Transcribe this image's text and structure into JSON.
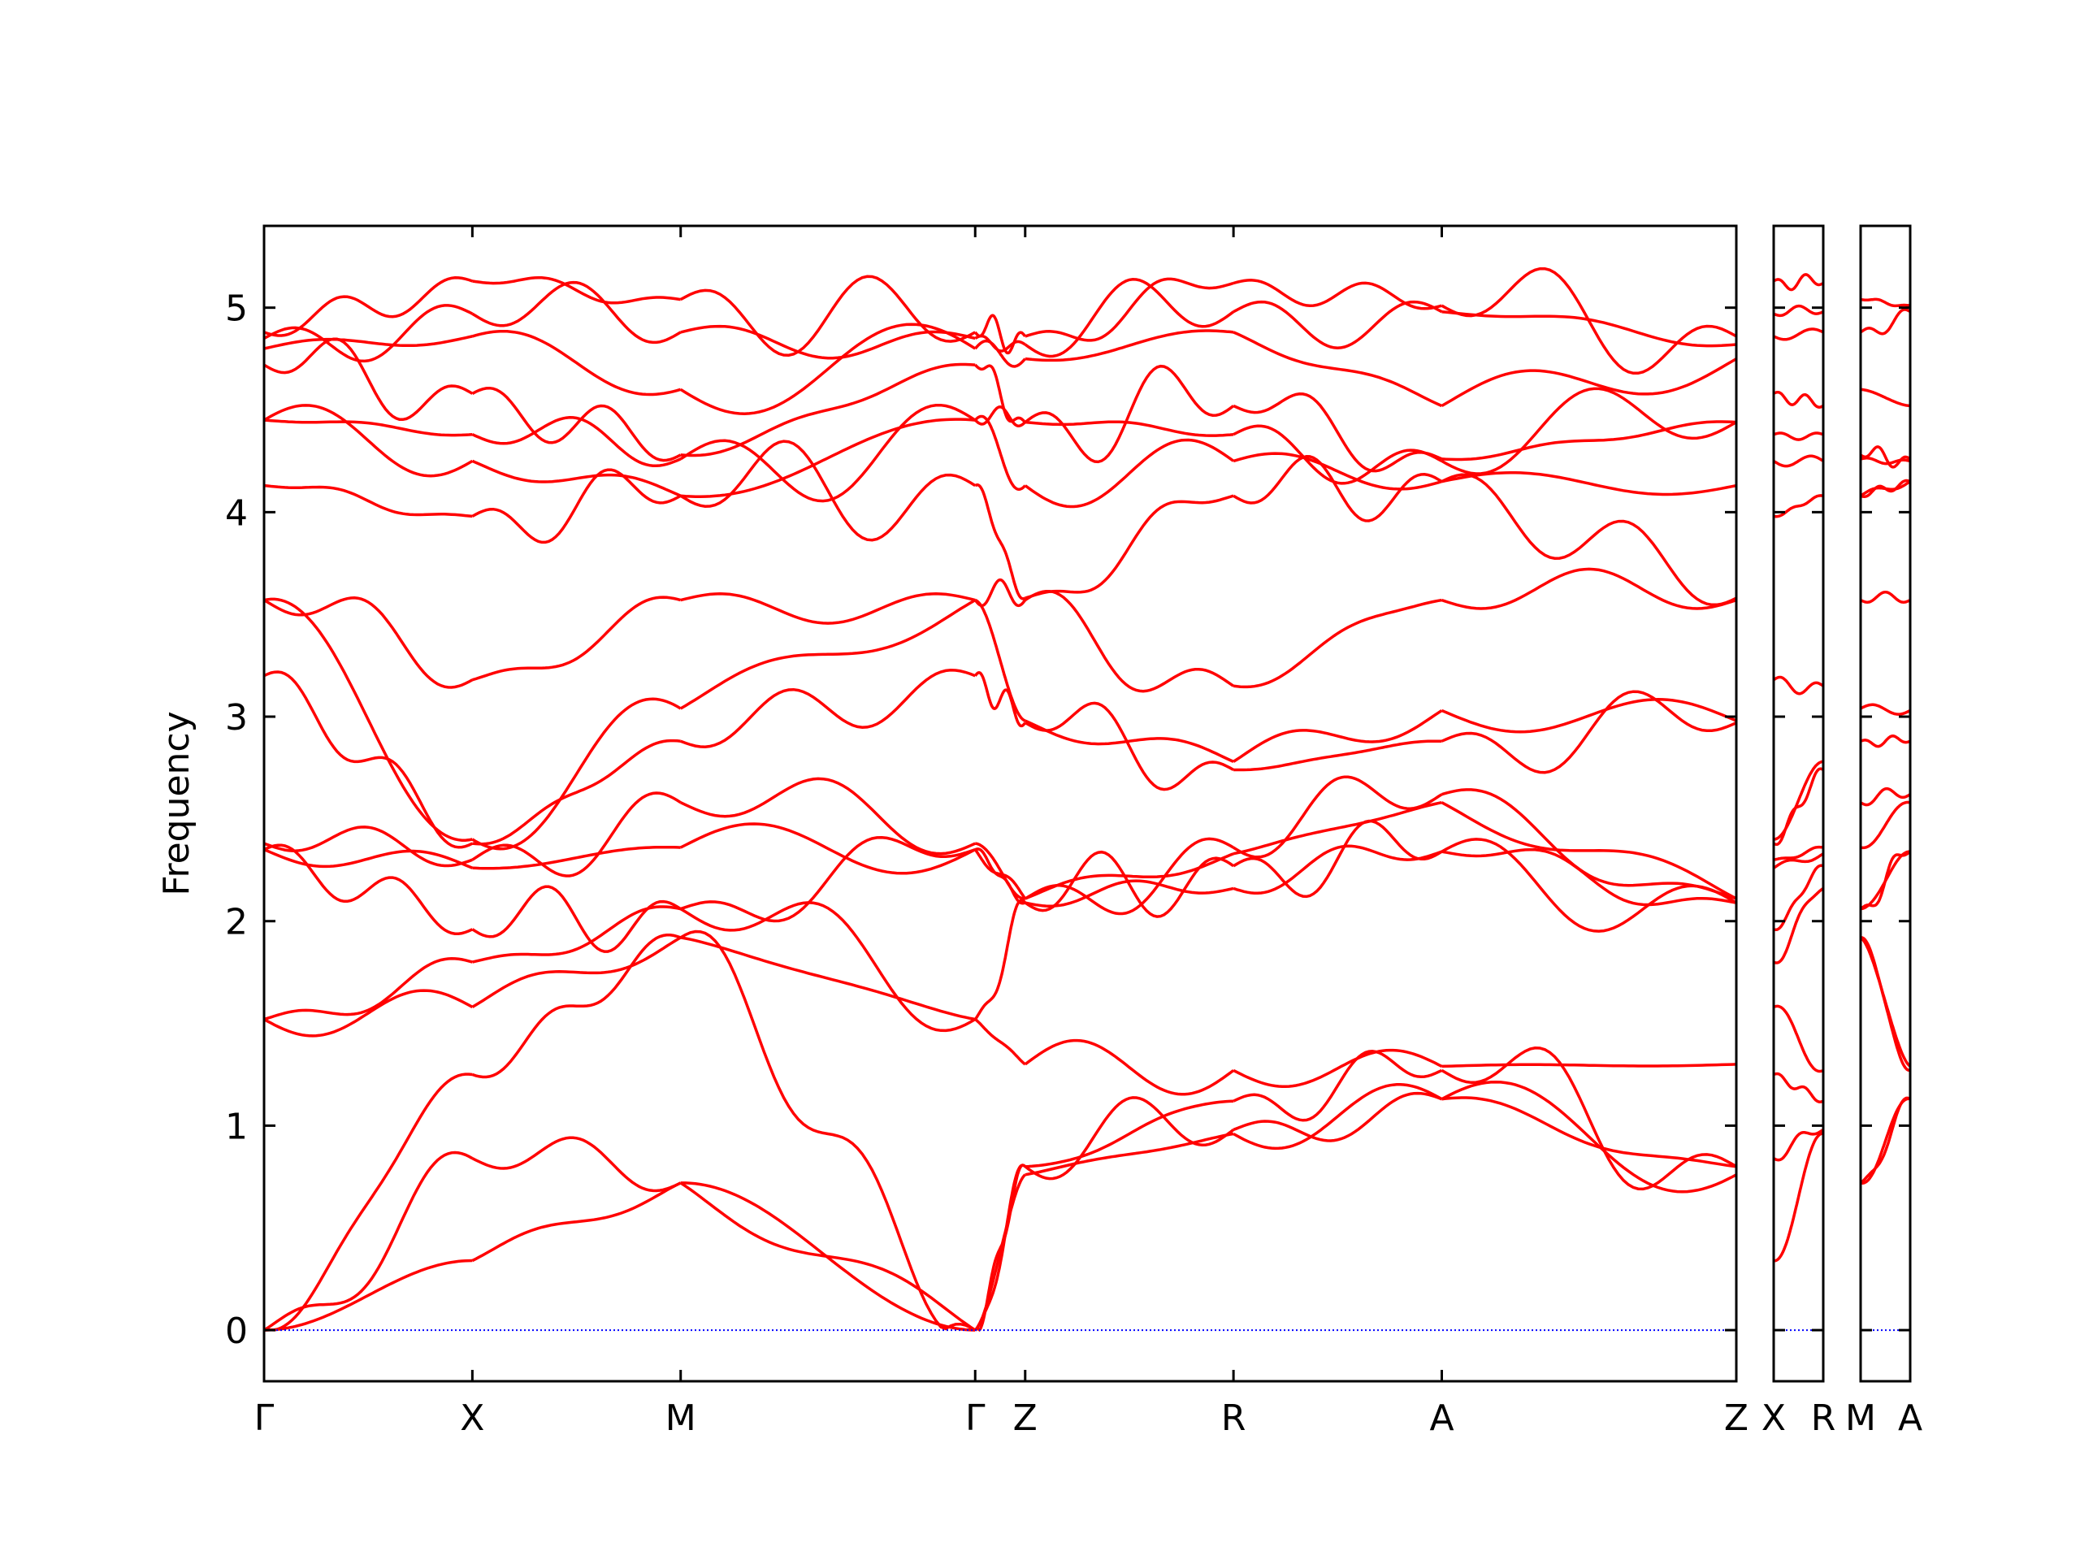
{
  "chart_data": {
    "type": "line",
    "title": "",
    "ylabel": "Frequency",
    "xlabel": "",
    "ylim": [
      -0.25,
      5.4
    ],
    "yticks": [
      0,
      1,
      2,
      3,
      4,
      5
    ],
    "ytick_labels": [
      "0",
      "1",
      "2",
      "3",
      "4",
      "5"
    ],
    "grid": false,
    "legend": "none",
    "line_color": "#ff0000",
    "zero_line_color": "#0000ff",
    "panels": [
      {
        "id": "main",
        "labels": [
          "Γ",
          "X",
          "M",
          "Γ",
          "Z",
          "R",
          "A",
          "Z"
        ],
        "positions": [
          0,
          1,
          2,
          3.414,
          3.654,
          4.654,
          5.654,
          7.068
        ]
      },
      {
        "id": "xr",
        "labels": [
          "X",
          "R"
        ],
        "positions": [
          0,
          1
        ]
      },
      {
        "id": "ma",
        "labels": [
          "M",
          "A"
        ],
        "positions": [
          0,
          1
        ]
      }
    ],
    "panel_tick_labels": [
      "Γ",
      "X",
      "M",
      "Γ",
      "Z",
      "R",
      "A",
      "Z",
      "X",
      "R",
      "M",
      "A"
    ],
    "point_sets": {
      "Gamma": [
        0,
        0,
        0,
        1.52,
        1.52,
        2.35,
        2.35,
        2.38,
        3.2,
        3.57,
        3.57,
        4.13,
        4.45,
        4.45,
        4.72,
        4.8,
        4.85,
        4.88
      ],
      "X": [
        0.34,
        0.84,
        1.25,
        1.58,
        1.8,
        1.96,
        2.26,
        2.3,
        2.38,
        2.4,
        3.18,
        3.98,
        4.25,
        4.38,
        4.58,
        4.86,
        4.97,
        5.13
      ],
      "M": [
        0.72,
        0.72,
        1.92,
        1.92,
        2.06,
        2.06,
        2.36,
        2.58,
        2.88,
        3.04,
        3.57,
        4.08,
        4.08,
        4.26,
        4.28,
        4.6,
        4.88,
        5.04
      ],
      "Z": [
        0.76,
        0.8,
        0.8,
        1.3,
        2.09,
        2.09,
        2.11,
        2.11,
        2.97,
        2.98,
        3.57,
        3.58,
        4.13,
        4.44,
        4.44,
        4.75,
        4.82,
        4.86
      ],
      "R": [
        0.96,
        0.98,
        1.12,
        1.27,
        2.16,
        2.27,
        2.33,
        2.36,
        2.74,
        2.78,
        3.15,
        4.08,
        4.25,
        4.38,
        4.52,
        4.88,
        4.98,
        5.12
      ],
      "A": [
        1.13,
        1.13,
        1.27,
        1.29,
        2.34,
        2.34,
        2.58,
        2.62,
        2.88,
        3.03,
        3.57,
        4.15,
        4.15,
        4.25,
        4.26,
        4.52,
        4.98,
        5.01
      ]
    },
    "band_count": 18
  }
}
